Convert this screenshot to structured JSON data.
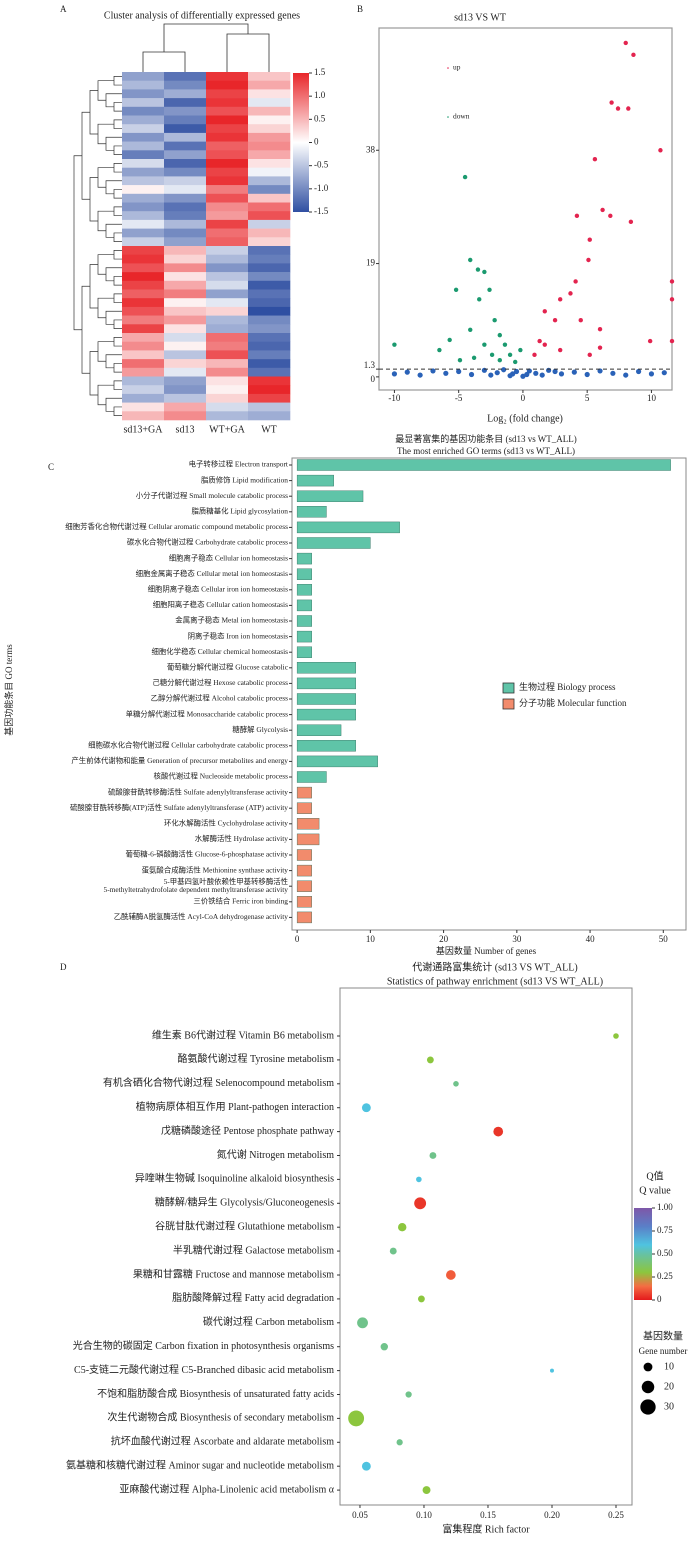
{
  "chart_data": [
    {
      "type": "heatmap",
      "label": "A",
      "title": "Cluster analysis of differentially expressed genes",
      "columns": [
        "sd13+GA",
        "sd13",
        "WT+GA",
        "WT"
      ],
      "values": [
        [
          -0.8,
          -1.2,
          1.4,
          0.4
        ],
        [
          -0.6,
          -1.0,
          1.5,
          0.6
        ],
        [
          -0.9,
          -0.7,
          1.3,
          0.2
        ],
        [
          -0.5,
          -1.3,
          1.4,
          -0.2
        ],
        [
          -1.0,
          -0.9,
          1.2,
          0.5
        ],
        [
          -0.7,
          -1.1,
          1.5,
          0.1
        ],
        [
          -0.4,
          -1.4,
          1.3,
          0.3
        ],
        [
          -0.9,
          -0.6,
          1.4,
          0.7
        ],
        [
          -0.6,
          -1.2,
          1.1,
          0.8
        ],
        [
          -1.1,
          -0.8,
          1.2,
          0.6
        ],
        [
          -0.3,
          -1.3,
          1.5,
          0.2
        ],
        [
          -0.8,
          -1.0,
          1.3,
          -0.1
        ],
        [
          -0.5,
          -0.4,
          1.4,
          -0.6
        ],
        [
          0.1,
          -0.2,
          0.9,
          -1.0
        ],
        [
          -0.7,
          -0.9,
          1.2,
          0.4
        ],
        [
          -0.9,
          -1.2,
          0.8,
          1.0
        ],
        [
          -0.6,
          -1.1,
          0.7,
          1.2
        ],
        [
          -0.2,
          -0.6,
          1.3,
          -0.4
        ],
        [
          -0.8,
          -1.0,
          1.0,
          0.5
        ],
        [
          -0.4,
          -0.8,
          1.1,
          0.3
        ],
        [
          1.3,
          0.5,
          -0.4,
          -1.2
        ],
        [
          1.4,
          0.3,
          -0.6,
          -1.1
        ],
        [
          1.2,
          0.8,
          -0.9,
          -1.3
        ],
        [
          1.5,
          0.2,
          -0.5,
          -1.0
        ],
        [
          1.3,
          0.6,
          -0.3,
          -1.4
        ],
        [
          1.1,
          0.9,
          -0.8,
          -1.2
        ],
        [
          1.4,
          0.1,
          -0.2,
          -1.3
        ],
        [
          1.2,
          0.4,
          0.3,
          -1.5
        ],
        [
          0.9,
          0.7,
          -0.6,
          -1.0
        ],
        [
          1.3,
          0.2,
          -0.7,
          -0.9
        ],
        [
          0.6,
          -0.3,
          1.0,
          -1.2
        ],
        [
          0.8,
          0.1,
          0.9,
          -1.3
        ],
        [
          0.4,
          -0.5,
          1.2,
          -1.1
        ],
        [
          1.0,
          0.3,
          0.5,
          -1.4
        ],
        [
          0.7,
          -0.2,
          0.8,
          -1.2
        ],
        [
          -0.6,
          -0.8,
          0.2,
          1.4
        ],
        [
          -0.4,
          -0.9,
          0.1,
          1.5
        ],
        [
          -0.7,
          -0.5,
          0.3,
          1.3
        ],
        [
          0.2,
          0.6,
          -0.3,
          -0.5
        ],
        [
          0.5,
          0.8,
          -0.6,
          -0.7
        ]
      ],
      "zlim": [
        -1.5,
        1.5
      ],
      "colors": [
        "#2f4fa2",
        "#ffffff",
        "#e8262a"
      ],
      "zticks": [
        1.5,
        {
          "value": 1,
          "label": "1.0"
        },
        0.5,
        0,
        -0.5,
        {
          "value": -1,
          "label": "-1.0"
        },
        -1.5
      ]
    },
    {
      "type": "scatter",
      "label": "B",
      "title": "sd13 VS WT",
      "xlabel": "Log₂ (fold change)",
      "xlim": [
        -11.2,
        11.6
      ],
      "ylim": [
        -2.2,
        58.5
      ],
      "xticks": [
        -10,
        -5,
        0,
        5,
        10
      ],
      "yticks": [
        0,
        1.3,
        19,
        38
      ],
      "threshold": 1.3,
      "series": [
        {
          "name": "up",
          "color": "#e3244f",
          "x": [
            8,
            8.6,
            6.9,
            8.2,
            7.4,
            10.7,
            5.6,
            6.2,
            8.4,
            4.2,
            6.8,
            5.2,
            5.1,
            4.1,
            2.9,
            3.7,
            1.7,
            2.5,
            4.5,
            1.3,
            6,
            9.9,
            11.6,
            11.6,
            11.6,
            0.9,
            2.9,
            5.2,
            1.7,
            6
          ],
          "values": [
            56,
            54,
            46,
            45,
            45,
            38,
            36.5,
            28,
            26,
            27,
            27,
            23,
            19.6,
            16,
            13,
            14,
            11,
            9.5,
            9.5,
            6,
            8,
            6,
            16,
            13,
            6,
            3.7,
            4.5,
            3.7,
            5.4,
            4.9
          ]
        },
        {
          "name": "down",
          "color": "#1b9a6f",
          "x": [
            -4.5,
            -4.1,
            -3.5,
            -3,
            -5.2,
            -2.6,
            -3.4,
            -2.2,
            -4.1,
            -1.8,
            -1.4,
            -3,
            -5.7,
            -6.5,
            -1,
            -2.4,
            -3.8,
            -4.9,
            -1.8,
            -0.6,
            -10,
            -0.2
          ],
          "values": [
            33.5,
            19.6,
            18,
            17.6,
            14.6,
            14.6,
            13,
            9.5,
            7.9,
            7,
            5.4,
            5.4,
            6.2,
            4.5,
            3.7,
            3.7,
            3.2,
            2.8,
            2.8,
            2.5,
            5.4,
            4.5
          ]
        },
        {
          "color": "#2a62b8",
          "x": [
            -10,
            -9,
            -8,
            -7,
            -6,
            -5,
            -4,
            -3,
            -2,
            -1.5,
            -1,
            -0.5,
            0,
            0.5,
            1,
            1.5,
            2,
            3,
            4,
            5,
            6,
            7,
            8,
            9,
            10,
            11,
            -0.8,
            0.3,
            -2.5,
            2.5
          ],
          "values": [
            0.5,
            0.8,
            0.3,
            1.0,
            0.6,
            0.9,
            0.4,
            1.1,
            0.7,
            1.2,
            0.2,
            0.9,
            0.1,
            1.0,
            0.6,
            0.3,
            1.1,
            0.5,
            0.8,
            0.4,
            1.0,
            0.6,
            0.3,
            0.9,
            0.5,
            0.7,
            0.5,
            0.4,
            0.3,
            0.9
          ]
        }
      ]
    },
    {
      "type": "barh",
      "label": "C",
      "title": "最显著富集的基因功能条目 (sd13 vs WT_ALL)",
      "subtitle": "The most enriched GO terms (sd13 vs WT_ALL)",
      "xlabel": "基因数量 Number of genes",
      "ylabel": "基因功能条目 GO terms",
      "xlim": [
        -0.7,
        53.1
      ],
      "xticks": [
        0,
        10,
        20,
        30,
        40,
        50
      ],
      "series": [
        {
          "name": "生物过程 Biology process",
          "color": "#5fc4a8"
        },
        {
          "name": "分子功能 Molecular function",
          "color": "#f28b6c"
        }
      ],
      "categories": [
        "电子转移过程 Electron transport",
        "脂质修饰 Lipid modification",
        "小分子代谢过程 Small molecule catabolic process",
        "脂质糖基化 Lipid glycosylation",
        "细胞芳香化合物代谢过程 Cellular aromatic compound metabolic process",
        "碳水化合物代谢过程 Carbohydrate catabolic process",
        "细胞离子稳态 Cellular ion homeostasis",
        "细胞金属离子稳态 Cellular metal ion homeostasis",
        "细胞阴离子稳态 Cellular iron ion homeostasis",
        "细胞阳离子稳态 Cellular cation homeostasis",
        "金属离子稳态 Metal ion homeostasis",
        "阴离子稳态 Iron ion homeostasis",
        "细胞化学稳态 Cellular chemical homeostasis",
        "葡萄糖分解代谢过程 Glucose catabolic",
        "己糖分解代谢过程 Hexose catabolic process",
        "乙醇分解代谢过程 Alcohol catabolic process",
        "单糖分解代谢过程 Monosaccharide catabolic process",
        "糖酵解 Glycolysis",
        "细胞碳水化合物代谢过程 Cellular carbohydrate catabolic process",
        "产生前体代谢物和能量 Generation of precursor metabolites and energy",
        "核酸代谢过程 Nucleoside metabolic process",
        "硫酸腺苷酰转移酶活性 Sulfate adenylyltransferase activity",
        "硫酸腺苷酰转移酶(ATP)活性 Sulfate adenylyltransferase (ATP) activity",
        "环化水解酶活性 Cyclohydrolase activity",
        "水解酶活性 Hydrolase activity",
        "葡萄糖-6-磷酸酶活性 Glucose-6-phosphatase activity",
        "蛋氨酸合成酶活性 Methionine synthase activity",
        "5-甲基四氢叶酸依赖性甲基转移酶活性\n5-methyltetrahydrofolate dependent methyltransferase activity",
        "三价铁结合 Ferric iron binding",
        "乙酰辅酶A脱氢酶活性 Acyl-CoA dehydrogenase activity"
      ],
      "values": [
        51,
        5,
        9,
        4,
        14,
        10,
        2,
        2,
        2,
        2,
        2,
        2,
        2,
        8,
        8,
        8,
        8,
        6,
        8,
        11,
        4,
        2,
        2,
        3,
        3,
        2,
        2,
        2,
        2,
        2
      ],
      "groups": [
        0,
        0,
        0,
        0,
        0,
        0,
        0,
        0,
        0,
        0,
        0,
        0,
        0,
        0,
        0,
        0,
        0,
        0,
        0,
        0,
        0,
        1,
        1,
        1,
        1,
        1,
        1,
        1,
        1,
        1
      ]
    },
    {
      "type": "bubble",
      "label": "D",
      "title": "代谢通路富集统计 (sd13 VS WT_ALL)",
      "subtitle": "Statistics of pathway enrichment (sd13 VS WT_ALL)",
      "xlabel": "富集程度 Rich factor",
      "xlim": [
        0.0344,
        0.2625
      ],
      "xticks": [
        0.05,
        {
          "value": 0.1,
          "label": "0.10"
        },
        0.15,
        {
          "value": 0.2,
          "label": "0.20"
        },
        0.25
      ],
      "categories": [
        "维生素 B6代谢过程 Vitamin B6 metabolism",
        "酪氨酸代谢过程 Tyrosine metabolism",
        "有机含硒化合物代谢过程 Selenocompound metabolism",
        "植物病原体相互作用 Plant-pathogen interaction",
        "戊糖磷酸途径 Pentose phosphate pathway",
        "氮代谢 Nitrogen metabolism",
        "异喹啉生物碱 Isoquinoline alkaloid  biosynthesis",
        "糖酵解/糖异生 Glycolysis/Gluconeogenesis",
        "谷胱甘肽代谢过程 Glutathione metabolism",
        "半乳糖代谢过程 Galactose metabolism",
        "果糖和甘露糖 Fructose and mannose metabolism",
        "脂肪酸降解过程 Fatty acid degradation",
        "碳代谢过程 Carbon metabolism",
        "光合生物的碳固定 Carbon fixation in photosynthesis organisms",
        "C5-支链二元酸代谢过程 C5-Branched dibasic acid metabolism",
        "不饱和脂肪酸合成 Biosynthesis of unsaturated fatty acids",
        "次生代谢物合成 Biosynthesis of secondary metabolism",
        "抗坏血酸代谢过程 Ascorbate and aldarate metabolism",
        "氨基糖和核糖代谢过程 Aminor sugar and nucleotide metabolism",
        "亚麻酸代谢过程 Alpha-Linolenic acid metabolism α"
      ],
      "x": [
        0.25,
        0.105,
        0.125,
        0.055,
        0.158,
        0.107,
        0.096,
        0.097,
        0.083,
        0.076,
        0.121,
        0.098,
        0.052,
        0.069,
        0.2,
        0.088,
        0.047,
        0.081,
        0.055,
        0.102
      ],
      "q": [
        0.3,
        0.3,
        0.45,
        0.6,
        0.05,
        0.45,
        0.6,
        0.05,
        0.3,
        0.45,
        0.12,
        0.3,
        0.45,
        0.45,
        0.6,
        0.45,
        0.3,
        0.45,
        0.6,
        0.3
      ],
      "sizes": [
        4,
        6,
        4,
        10,
        12,
        6,
        4,
        18,
        9,
        6,
        12,
        6,
        15,
        7,
        2,
        5,
        32,
        5,
        10,
        8
      ],
      "color_legend_title": "Q值",
      "color_legend_subtitle": "Q value",
      "qlim": [
        0,
        1
      ],
      "qticks": [
        {
          "value": 1,
          "label": "1.00"
        },
        0.75,
        {
          "value": 0.5,
          "label": "0.50"
        },
        0.25,
        0
      ],
      "colorscale": [
        [
          0,
          "#e41a1c"
        ],
        [
          0.15,
          "#f46d43"
        ],
        [
          0.3,
          "#8cc63e"
        ],
        [
          0.5,
          "#66c2a5"
        ],
        [
          0.6,
          "#4fc3e0"
        ],
        [
          0.8,
          "#5a7fc7"
        ],
        [
          1,
          "#7e57a8"
        ]
      ],
      "size_legend_title": "基因数量",
      "size_legend_subtitle": "Gene number",
      "size_ticks": [
        10,
        20,
        30
      ]
    }
  ]
}
